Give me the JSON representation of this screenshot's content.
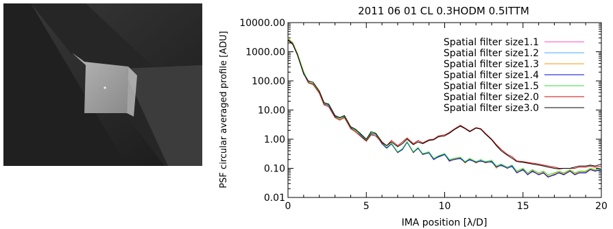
{
  "image": {
    "description_icon": "grayscale-detector-image"
  },
  "chart_data": {
    "type": "line",
    "title": "2011 06 01 CL 0.3HODM 0.5ITTM",
    "xlabel": "IMA position [λ/D]",
    "ylabel": "PSF circular averaged profile [ADU]",
    "xlim": [
      0,
      20
    ],
    "ylim": [
      0.01,
      10000
    ],
    "yscale": "log",
    "x_ticks": [
      "0",
      "5",
      "10",
      "15",
      "20"
    ],
    "y_ticks": [
      "0.01",
      "0.10",
      "1.00",
      "10.00",
      "100.00",
      "1000.00",
      "10000.00"
    ],
    "legend_position": "top-right",
    "grid": false,
    "x": [
      0,
      0.3,
      0.6,
      1.0,
      1.3,
      1.6,
      2.0,
      2.3,
      2.6,
      3.0,
      3.3,
      3.6,
      4.0,
      4.3,
      4.6,
      5.0,
      5.3,
      5.6,
      6.0,
      6.3,
      6.6,
      7.0,
      7.3,
      7.6,
      8.0,
      8.3,
      8.6,
      9.0,
      9.3,
      9.6,
      10.0,
      10.3,
      10.6,
      11.0,
      11.3,
      11.6,
      12.0,
      12.3,
      12.6,
      13.0,
      13.3,
      13.6,
      14.0,
      14.3,
      14.6,
      15.0,
      15.3,
      15.6,
      16.0,
      16.3,
      16.6,
      17.0,
      17.3,
      17.6,
      18.0,
      18.3,
      18.6,
      19.0,
      19.3,
      19.6,
      20.0
    ],
    "series": [
      {
        "name": "Spatial filter size1.1",
        "color": "#ff44cc",
        "values": [
          2800,
          2000,
          900,
          200,
          90,
          80,
          40,
          16,
          15,
          6,
          5,
          6,
          2.5,
          2,
          1.5,
          0.9,
          1.6,
          1.5,
          0.7,
          0.5,
          0.7,
          0.35,
          0.45,
          0.8,
          0.35,
          0.5,
          0.3,
          0.35,
          0.2,
          0.25,
          0.3,
          0.18,
          0.2,
          0.22,
          0.16,
          0.2,
          0.16,
          0.18,
          0.16,
          0.17,
          0.11,
          0.13,
          0.1,
          0.12,
          0.07,
          0.09,
          0.06,
          0.08,
          0.06,
          0.07,
          0.05,
          0.06,
          0.07,
          0.06,
          0.08,
          0.06,
          0.07,
          0.07,
          0.09,
          0.08,
          0.09
        ]
      },
      {
        "name": "Spatial filter size1.2",
        "color": "#44aaff",
        "values": [
          2700,
          2100,
          850,
          210,
          95,
          78,
          42,
          17,
          14,
          6.2,
          5.2,
          5.8,
          2.4,
          2.1,
          1.4,
          0.95,
          1.5,
          1.45,
          0.72,
          0.52,
          0.68,
          0.36,
          0.44,
          0.78,
          0.36,
          0.48,
          0.31,
          0.34,
          0.21,
          0.24,
          0.29,
          0.19,
          0.21,
          0.21,
          0.17,
          0.19,
          0.17,
          0.17,
          0.17,
          0.16,
          0.12,
          0.12,
          0.11,
          0.11,
          0.075,
          0.085,
          0.065,
          0.075,
          0.065,
          0.068,
          0.055,
          0.058,
          0.072,
          0.062,
          0.082,
          0.062,
          0.072,
          0.072,
          0.092,
          0.082,
          0.095
        ]
      },
      {
        "name": "Spatial filter size1.3",
        "color": "#ff9900",
        "values": [
          2900,
          2050,
          880,
          205,
          88,
          82,
          41,
          16.5,
          15.5,
          6.1,
          4.9,
          6.2,
          2.6,
          1.95,
          1.55,
          0.92,
          1.65,
          1.52,
          0.71,
          0.51,
          0.72,
          0.34,
          0.46,
          0.82,
          0.34,
          0.51,
          0.29,
          0.36,
          0.2,
          0.26,
          0.31,
          0.17,
          0.21,
          0.23,
          0.15,
          0.21,
          0.15,
          0.19,
          0.15,
          0.18,
          0.1,
          0.14,
          0.1,
          0.13,
          0.072,
          0.095,
          0.062,
          0.085,
          0.062,
          0.075,
          0.052,
          0.065,
          0.075,
          0.065,
          0.085,
          0.065,
          0.075,
          0.075,
          0.095,
          0.085,
          0.1
        ]
      },
      {
        "name": "Spatial filter size1.4",
        "color": "#0000cc",
        "values": [
          2750,
          1950,
          870,
          195,
          92,
          79,
          39,
          16.2,
          14.8,
          5.9,
          5.1,
          5.9,
          2.45,
          2.05,
          1.45,
          0.88,
          1.55,
          1.48,
          0.69,
          0.49,
          0.69,
          0.35,
          0.44,
          0.79,
          0.35,
          0.49,
          0.3,
          0.34,
          0.2,
          0.25,
          0.3,
          0.18,
          0.2,
          0.22,
          0.16,
          0.2,
          0.16,
          0.18,
          0.16,
          0.17,
          0.11,
          0.13,
          0.1,
          0.12,
          0.07,
          0.09,
          0.06,
          0.08,
          0.06,
          0.07,
          0.05,
          0.06,
          0.07,
          0.06,
          0.08,
          0.06,
          0.07,
          0.07,
          0.09,
          0.08,
          0.09
        ]
      },
      {
        "name": "Spatial filter size1.5",
        "color": "#33dd33",
        "values": [
          2850,
          2020,
          890,
          202,
          91,
          81,
          41,
          16.8,
          15.2,
          6.3,
          5.05,
          6.1,
          2.55,
          2.02,
          1.52,
          0.93,
          1.62,
          1.51,
          0.73,
          0.53,
          0.73,
          0.37,
          0.47,
          0.83,
          0.37,
          0.52,
          0.32,
          0.37,
          0.22,
          0.27,
          0.32,
          0.2,
          0.22,
          0.24,
          0.17,
          0.22,
          0.17,
          0.2,
          0.17,
          0.19,
          0.12,
          0.14,
          0.11,
          0.13,
          0.08,
          0.1,
          0.07,
          0.09,
          0.07,
          0.08,
          0.06,
          0.07,
          0.08,
          0.07,
          0.09,
          0.07,
          0.08,
          0.08,
          0.1,
          0.09,
          0.1
        ]
      },
      {
        "name": "Spatial filter size2.0",
        "color": "#cc0000",
        "values": [
          2600,
          1900,
          800,
          180,
          85,
          75,
          38,
          15,
          13,
          5.5,
          4.5,
          5.5,
          2.3,
          1.8,
          1.3,
          0.85,
          1.4,
          1.3,
          0.75,
          0.6,
          0.9,
          0.6,
          0.8,
          1.1,
          0.7,
          0.9,
          0.75,
          0.95,
          1.0,
          1.3,
          1.4,
          1.7,
          2.2,
          3.0,
          2.4,
          1.9,
          2.5,
          2.3,
          1.6,
          1.0,
          0.65,
          0.45,
          0.3,
          0.25,
          0.18,
          0.17,
          0.16,
          0.15,
          0.14,
          0.13,
          0.12,
          0.11,
          0.1,
          0.1,
          0.1,
          0.1,
          0.11,
          0.11,
          0.12,
          0.11,
          0.12
        ]
      },
      {
        "name": "Spatial filter size3.0",
        "color": "#000000",
        "values": [
          2500,
          1800,
          780,
          170,
          100,
          90,
          45,
          18,
          16,
          6.5,
          5.5,
          6.5,
          2.7,
          2.2,
          1.6,
          1.0,
          1.8,
          1.6,
          0.8,
          0.6,
          0.8,
          0.55,
          0.7,
          1.0,
          0.65,
          0.8,
          0.7,
          0.9,
          0.95,
          1.2,
          1.3,
          1.6,
          2.1,
          2.8,
          2.3,
          1.8,
          2.4,
          2.2,
          1.5,
          0.95,
          0.6,
          0.4,
          0.28,
          0.22,
          0.17,
          0.16,
          0.15,
          0.14,
          0.13,
          0.12,
          0.11,
          0.1,
          0.095,
          0.1,
          0.1,
          0.11,
          0.12,
          0.12,
          0.13,
          0.12,
          0.14
        ]
      }
    ]
  }
}
